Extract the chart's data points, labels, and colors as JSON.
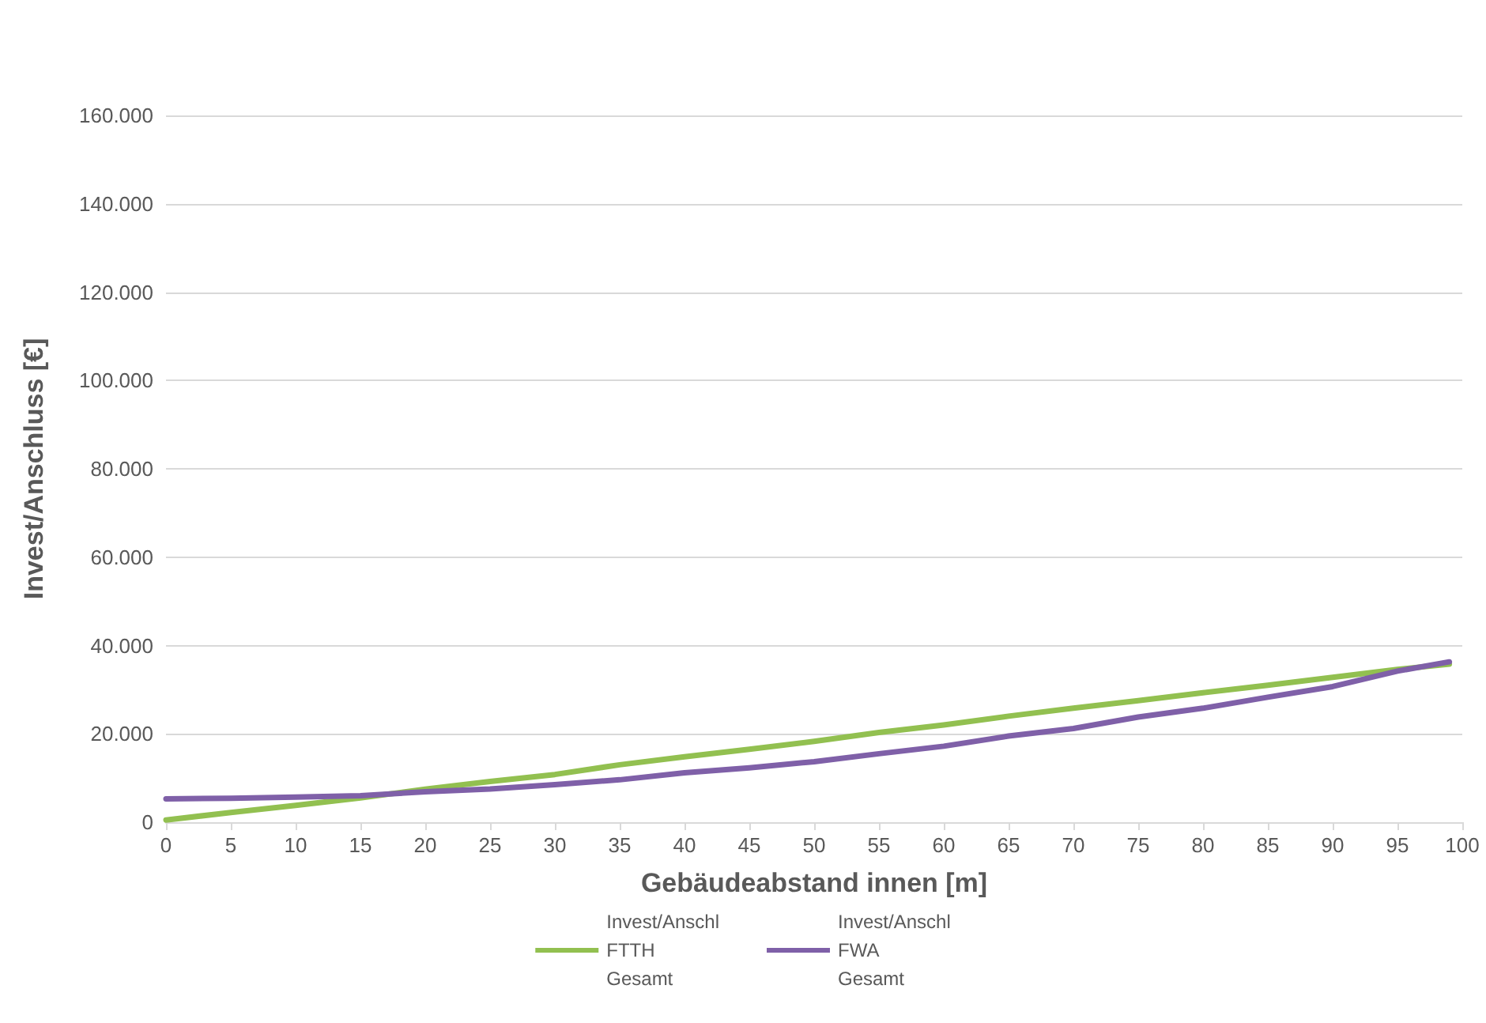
{
  "chart_data": {
    "type": "line",
    "xlabel": "Gebäudeabstand innen [m]",
    "ylabel": "Invest/Anschluss [€]",
    "x": [
      0,
      5,
      10,
      15,
      20,
      25,
      30,
      35,
      40,
      45,
      50,
      55,
      60,
      65,
      70,
      75,
      80,
      85,
      90,
      95,
      99
    ],
    "series": [
      {
        "name": "Invest/Anschl\nFTTH\nGesamt",
        "color": "#92c050",
        "values": [
          500,
          2200,
          3800,
          5500,
          7500,
          9200,
          10800,
          13000,
          14800,
          16500,
          18300,
          20300,
          22000,
          24000,
          25800,
          27500,
          29300,
          31000,
          32800,
          34600,
          35800
        ]
      },
      {
        "name": "Invest/Anschl\nFWA\nGesamt",
        "color": "#7f60a8",
        "values": [
          5300,
          5400,
          5700,
          6000,
          6900,
          7500,
          8500,
          9600,
          11200,
          12300,
          13700,
          15500,
          17200,
          19500,
          21200,
          23800,
          25800,
          28300,
          30700,
          34200,
          36300
        ]
      }
    ],
    "xlim": [
      0,
      100
    ],
    "xticks": [
      0,
      5,
      10,
      15,
      20,
      25,
      30,
      35,
      40,
      45,
      50,
      55,
      60,
      65,
      70,
      75,
      80,
      85,
      90,
      95,
      100
    ],
    "ylim": [
      0,
      160000
    ],
    "yticks": [
      0,
      {
        "value": 20000,
        "label": "20.000"
      },
      {
        "value": 40000,
        "label": "40.000"
      },
      {
        "value": 60000,
        "label": "60.000"
      },
      {
        "value": 80000,
        "label": "80.000"
      },
      {
        "value": 100000,
        "label": "100.000"
      },
      {
        "value": 120000,
        "label": "120.000"
      },
      {
        "value": 140000,
        "label": "140.000"
      },
      {
        "value": 160000,
        "label": "160.000"
      }
    ],
    "grid": "y",
    "legend": "bottom",
    "marker": "none",
    "line_style": "solid"
  }
}
